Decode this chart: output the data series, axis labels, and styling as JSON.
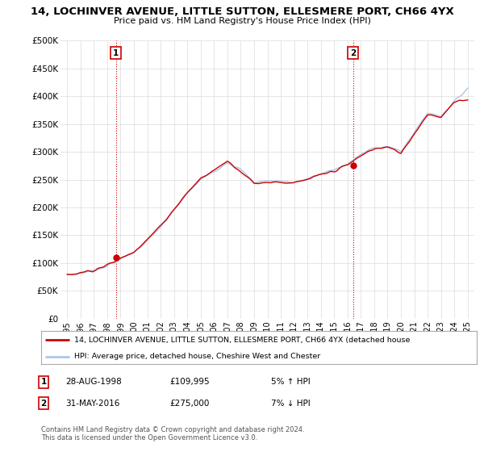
{
  "title": "14, LOCHINVER AVENUE, LITTLE SUTTON, ELLESMERE PORT, CH66 4YX",
  "subtitle": "Price paid vs. HM Land Registry's House Price Index (HPI)",
  "ylabel_ticks": [
    "£0",
    "£50K",
    "£100K",
    "£150K",
    "£200K",
    "£250K",
    "£300K",
    "£350K",
    "£400K",
    "£450K",
    "£500K"
  ],
  "ytick_values": [
    0,
    50000,
    100000,
    150000,
    200000,
    250000,
    300000,
    350000,
    400000,
    450000,
    500000
  ],
  "ylim": [
    0,
    500000
  ],
  "xlim_start": 1994.5,
  "xlim_end": 2025.5,
  "bg_color": "#ffffff",
  "grid_color": "#e0e0e0",
  "hpi_color": "#a8c8e8",
  "price_color": "#cc0000",
  "legend_house": "14, LOCHINVER AVENUE, LITTLE SUTTON, ELLESMERE PORT, CH66 4YX (detached house",
  "legend_hpi": "HPI: Average price, detached house, Cheshire West and Chester",
  "point1_date": "28-AUG-1998",
  "point1_price": "£109,995",
  "point1_hpi": "5% ↑ HPI",
  "point1_x": 1998.65,
  "point1_y": 109995,
  "point2_date": "31-MAY-2016",
  "point2_price": "£275,000",
  "point2_hpi": "7% ↓ HPI",
  "point2_x": 2016.41,
  "point2_y": 275000,
  "footnote": "Contains HM Land Registry data © Crown copyright and database right 2024.\nThis data is licensed under the Open Government Licence v3.0.",
  "xtick_years": [
    1995,
    1996,
    1997,
    1998,
    1999,
    2000,
    2001,
    2002,
    2003,
    2004,
    2005,
    2006,
    2007,
    2008,
    2009,
    2010,
    2011,
    2012,
    2013,
    2014,
    2015,
    2016,
    2017,
    2018,
    2019,
    2020,
    2021,
    2022,
    2023,
    2024,
    2025
  ]
}
